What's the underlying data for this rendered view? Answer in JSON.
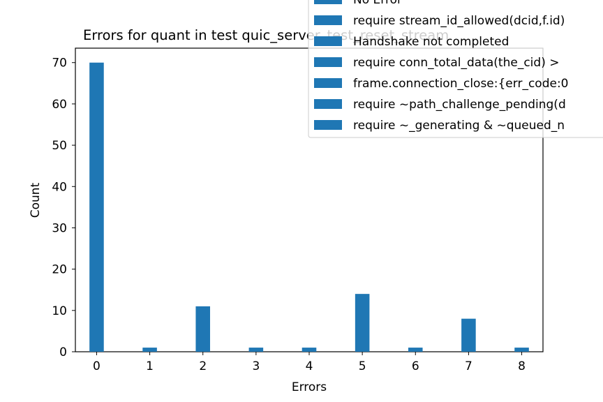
{
  "chart_data": {
    "type": "bar",
    "title": "Errors for quant in test quic_server_test_reset_stream",
    "xlabel": "Errors",
    "ylabel": "Count",
    "x_ticks": [
      "0",
      "1",
      "2",
      "3",
      "4",
      "5",
      "6",
      "7",
      "8"
    ],
    "y_ticks": [
      "0",
      "10",
      "20",
      "30",
      "40",
      "50",
      "60",
      "70"
    ],
    "xlim": [
      -0.4,
      8.4
    ],
    "ylim": [
      0,
      73.5
    ],
    "bar_color": "#1f77b4",
    "legend_position": "top-right",
    "legend_entries": [
      "No Error",
      "require stream_id_allowed(dcid,f.id)",
      "Handshake not completed",
      "require conn_total_data(the_cid) >",
      "frame.connection_close:{err_code:0",
      "require ~path_challenge_pending(d",
      "require ~_generating & ~queued_n"
    ],
    "x": [
      0,
      1,
      2,
      3,
      4,
      5,
      6,
      7,
      8
    ],
    "values": [
      70,
      1,
      11,
      1,
      1,
      14,
      1,
      8,
      1
    ]
  }
}
